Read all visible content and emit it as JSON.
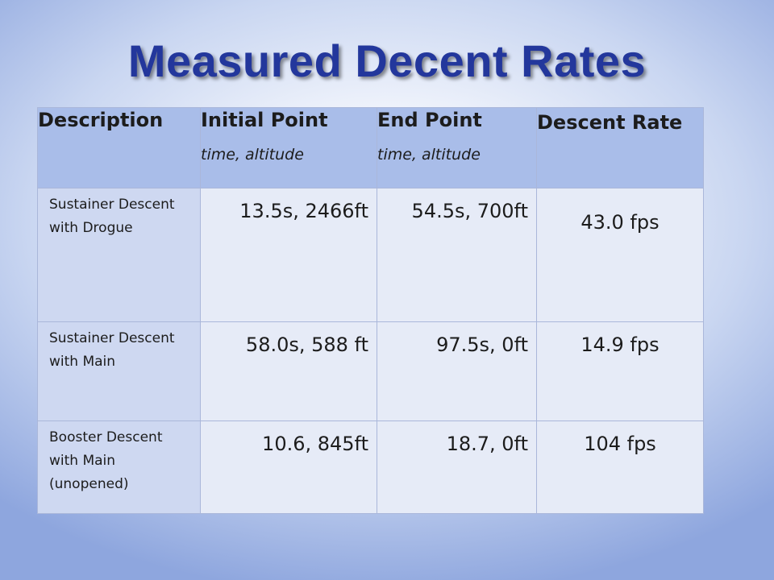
{
  "title": "Measured Decent Rates",
  "table": {
    "headers": [
      {
        "main": "Description",
        "sub": ""
      },
      {
        "main": "Initial Point",
        "sub": "time, altitude"
      },
      {
        "main": "End Point",
        "sub": "time, altitude"
      },
      {
        "main": "Descent Rate",
        "sub": ""
      }
    ],
    "rows": [
      {
        "description": "Sustainer Descent with Drogue",
        "initial": "13.5s, 2466ft",
        "end": "54.5s, 700ft",
        "rate": "43.0 fps"
      },
      {
        "description": "Sustainer Descent with Main",
        "initial": "58.0s, 588 ft",
        "end": "97.5s, 0ft",
        "rate": "14.9 fps"
      },
      {
        "description": "Booster Descent with Main (unopened)",
        "initial": "10.6, 845ft",
        "end": "18.7, 0ft",
        "rate": "104 fps"
      }
    ]
  },
  "colors": {
    "title": "#23379c",
    "header_bg": "#a9bde9",
    "desc_bg": "#ced8f1",
    "cell_bg": "#e6ebf7"
  }
}
